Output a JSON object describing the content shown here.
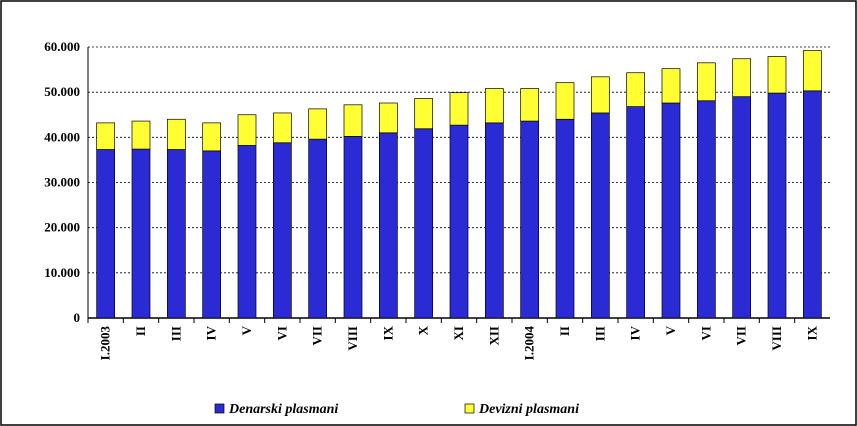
{
  "chart_data": {
    "type": "stacked_bar",
    "categories": [
      "I.2003",
      "II",
      "III",
      "IV",
      "V",
      "VI",
      "VII",
      "VIII",
      "IX",
      "X",
      "XI",
      "XII",
      "I.2004",
      "II",
      "III",
      "IV",
      "V",
      "VI",
      "VII",
      "VIII",
      "IX"
    ],
    "series": [
      {
        "name": "Denarski plasmani",
        "color": "#2b2bd6",
        "values": [
          37300,
          37400,
          37300,
          37000,
          38200,
          38800,
          39600,
          40200,
          41000,
          41900,
          42700,
          43200,
          43600,
          44000,
          45400,
          46800,
          47600,
          48100,
          49000,
          49800,
          50300
        ]
      },
      {
        "name": "Devizni plasmani",
        "color": "#ffff33",
        "values": [
          5900,
          6200,
          6700,
          6200,
          6800,
          6600,
          6700,
          7000,
          6600,
          6700,
          7200,
          7600,
          7200,
          8100,
          8000,
          7500,
          7600,
          8400,
          8400,
          8100,
          8900
        ]
      }
    ],
    "ylim": [
      0,
      60000
    ],
    "yticks": [
      0,
      {
        "value": 10000,
        "label": "10.000"
      },
      {
        "value": 20000,
        "label": "20.000"
      },
      {
        "value": 30000,
        "label": "30.000"
      },
      {
        "value": 40000,
        "label": "40.000"
      },
      {
        "value": 50000,
        "label": "50.000"
      },
      {
        "value": 60000,
        "label": "60.000"
      }
    ],
    "grid": true,
    "legend": "bottom"
  }
}
